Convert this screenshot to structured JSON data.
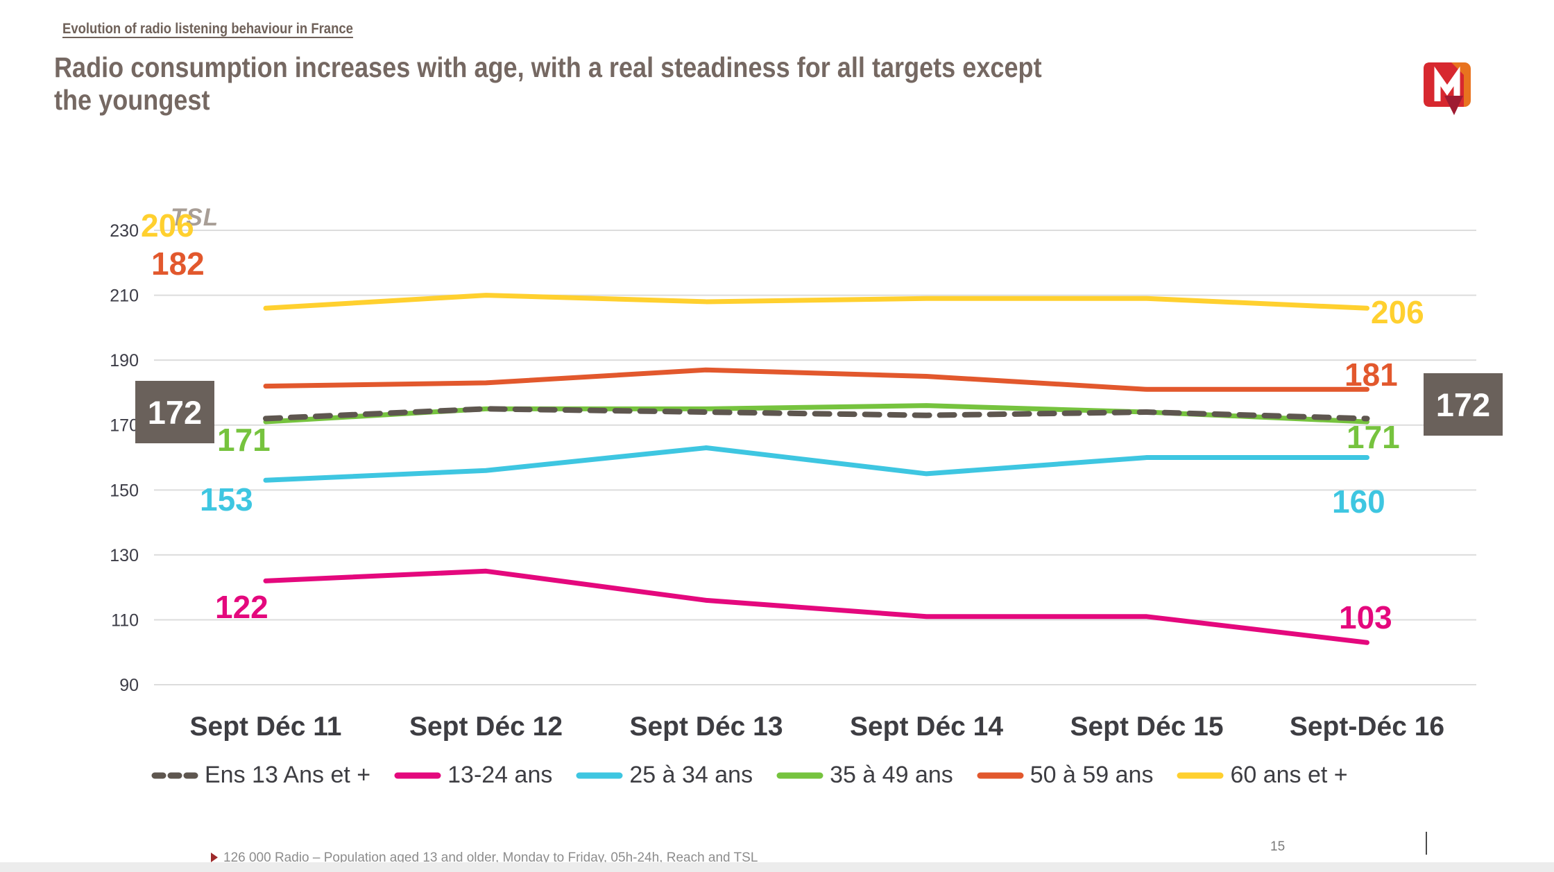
{
  "header": {
    "breadcrumb": "Evolution of radio listening behaviour in France"
  },
  "title": {
    "line1": "Radio consumption increases with age, with a real steadiness for all targets except",
    "line2": "the youngest"
  },
  "chart_data": {
    "type": "line",
    "unit_label": "TSL",
    "categories": [
      "Sept Déc 11",
      "Sept Déc 12",
      "Sept Déc 13",
      "Sept Déc 14",
      "Sept Déc 15",
      "Sept-Déc 16"
    ],
    "yticks": [
      230,
      210,
      190,
      170,
      150,
      130,
      110,
      90
    ],
    "ylim": [
      90,
      230
    ],
    "grid": true,
    "legend_position": "bottom",
    "series": [
      {
        "name": "Ens 13 Ans et +",
        "color": "#5e564f",
        "dashed": true,
        "values": [
          172,
          175,
          174,
          173,
          174,
          172
        ],
        "first_label": "172",
        "last_label": "172"
      },
      {
        "name": "13-24 ans",
        "color": "#e4087d",
        "dashed": false,
        "values": [
          122,
          125,
          116,
          111,
          111,
          103
        ],
        "first_label": "122",
        "last_label": "103"
      },
      {
        "name": "25 à 34 ans",
        "color": "#3ec6e1",
        "dashed": false,
        "values": [
          153,
          156,
          163,
          155,
          160,
          160
        ],
        "first_label": "153",
        "last_label": "160"
      },
      {
        "name": "35 à 49 ans",
        "color": "#76c33e",
        "dashed": false,
        "values": [
          171,
          175,
          175,
          176,
          174,
          171
        ],
        "first_label": "171",
        "last_label": "171"
      },
      {
        "name": "50 à 59 ans",
        "color": "#e2582d",
        "dashed": false,
        "values": [
          182,
          183,
          187,
          185,
          181,
          181
        ],
        "first_label": "182",
        "last_label": "181"
      },
      {
        "name": "60 ans et +",
        "color": "#ffd02f",
        "dashed": false,
        "values": [
          206,
          210,
          208,
          209,
          209,
          206
        ],
        "first_label": "206",
        "last_label": "206"
      }
    ]
  },
  "footer": {
    "source": "126 000 Radio – Population aged 13 and older, Monday to Friday, 05h-24h, Reach and TSL",
    "page_number": "15"
  }
}
